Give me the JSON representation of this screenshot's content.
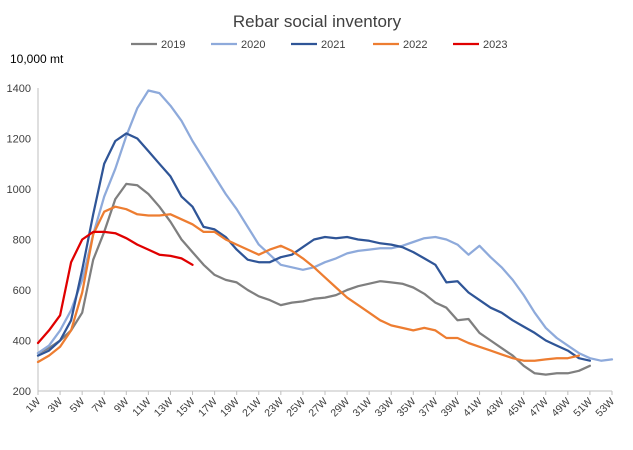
{
  "chart_data": {
    "type": "line",
    "title": "Rebar social inventory",
    "unit_label": "10,000 mt",
    "ylim": [
      200,
      1400
    ],
    "yticks": [
      200,
      400,
      600,
      800,
      1000,
      1200,
      1400
    ],
    "xlim": [
      1,
      53
    ],
    "xticks": [
      "1W",
      "3W",
      "5W",
      "7W",
      "9W",
      "11W",
      "13W",
      "15W",
      "17W",
      "19W",
      "21W",
      "23W",
      "25W",
      "27W",
      "29W",
      "31W",
      "33W",
      "35W",
      "37W",
      "39W",
      "41W",
      "43W",
      "45W",
      "47W",
      "49W",
      "51W",
      "53W"
    ],
    "grid": false,
    "legend_position": "top",
    "series": [
      {
        "name": "2019",
        "color": "#7f7f7f",
        "x": [
          1,
          2,
          3,
          4,
          5,
          6,
          7,
          8,
          9,
          10,
          11,
          12,
          13,
          14,
          15,
          16,
          17,
          18,
          19,
          20,
          21,
          22,
          23,
          24,
          25,
          26,
          27,
          28,
          29,
          30,
          31,
          32,
          33,
          34,
          35,
          36,
          37,
          38,
          39,
          40,
          41,
          42,
          43,
          44,
          45,
          46,
          47,
          48,
          49,
          50,
          51
        ],
        "y": [
          350,
          370,
          400,
          440,
          510,
          720,
          830,
          960,
          1020,
          1015,
          980,
          930,
          870,
          800,
          750,
          700,
          660,
          640,
          630,
          600,
          575,
          560,
          540,
          550,
          555,
          565,
          570,
          580,
          600,
          615,
          625,
          635,
          630,
          625,
          610,
          585,
          550,
          530,
          480,
          485,
          430,
          400,
          370,
          340,
          300,
          270,
          265,
          270,
          270,
          280,
          300
        ]
      },
      {
        "name": "2020",
        "color": "#8eaadb",
        "x": [
          1,
          2,
          3,
          4,
          5,
          6,
          7,
          8,
          9,
          10,
          11,
          12,
          13,
          14,
          15,
          16,
          17,
          18,
          19,
          20,
          21,
          22,
          23,
          24,
          25,
          26,
          27,
          28,
          29,
          30,
          31,
          32,
          33,
          34,
          35,
          36,
          37,
          38,
          39,
          40,
          41,
          42,
          43,
          44,
          45,
          46,
          47,
          48,
          49,
          50,
          51,
          52,
          53
        ],
        "y": [
          350,
          380,
          440,
          520,
          640,
          820,
          970,
          1080,
          1210,
          1320,
          1390,
          1380,
          1330,
          1270,
          1190,
          1120,
          1050,
          980,
          920,
          850,
          780,
          740,
          700,
          690,
          680,
          690,
          710,
          725,
          745,
          755,
          760,
          765,
          765,
          775,
          790,
          805,
          810,
          800,
          780,
          740,
          775,
          730,
          690,
          640,
          580,
          510,
          450,
          410,
          380,
          350,
          330,
          320,
          325
        ]
      },
      {
        "name": "2021",
        "color": "#2f5597",
        "x": [
          1,
          2,
          3,
          4,
          5,
          6,
          7,
          8,
          9,
          10,
          11,
          12,
          13,
          14,
          15,
          16,
          17,
          18,
          19,
          20,
          21,
          22,
          23,
          24,
          25,
          26,
          27,
          28,
          29,
          30,
          31,
          32,
          33,
          34,
          35,
          36,
          37,
          38,
          39,
          40,
          41,
          42,
          43,
          44,
          45,
          46,
          47,
          48,
          49,
          50,
          51
        ],
        "y": [
          340,
          360,
          400,
          480,
          680,
          900,
          1100,
          1190,
          1220,
          1200,
          1150,
          1100,
          1050,
          970,
          930,
          850,
          840,
          810,
          760,
          720,
          710,
          710,
          730,
          740,
          770,
          800,
          810,
          805,
          810,
          800,
          795,
          785,
          780,
          770,
          750,
          725,
          700,
          630,
          635,
          590,
          560,
          530,
          510,
          480,
          455,
          430,
          400,
          380,
          360,
          330,
          320
        ]
      },
      {
        "name": "2022",
        "color": "#ed7d31",
        "x": [
          1,
          2,
          3,
          4,
          5,
          6,
          7,
          8,
          9,
          10,
          11,
          12,
          13,
          14,
          15,
          16,
          17,
          18,
          19,
          20,
          21,
          22,
          23,
          24,
          25,
          26,
          27,
          28,
          29,
          30,
          31,
          32,
          33,
          34,
          35,
          36,
          37,
          38,
          39,
          40,
          41,
          42,
          43,
          44,
          45,
          46,
          47,
          48,
          49,
          50
        ],
        "y": [
          315,
          340,
          375,
          440,
          590,
          820,
          910,
          930,
          920,
          900,
          895,
          895,
          900,
          880,
          860,
          830,
          830,
          800,
          780,
          760,
          740,
          760,
          775,
          755,
          725,
          690,
          650,
          610,
          570,
          540,
          510,
          480,
          460,
          450,
          440,
          450,
          440,
          410,
          410,
          390,
          375,
          360,
          345,
          330,
          320,
          320,
          325,
          330,
          330,
          340
        ]
      },
      {
        "name": "2023",
        "color": "#e00000",
        "x": [
          1,
          2,
          3,
          4,
          5,
          6,
          7,
          8,
          9,
          10,
          11,
          12,
          13,
          14,
          15
        ],
        "y": [
          390,
          440,
          500,
          710,
          800,
          830,
          830,
          825,
          805,
          780,
          760,
          740,
          735,
          725,
          700
        ]
      }
    ]
  }
}
